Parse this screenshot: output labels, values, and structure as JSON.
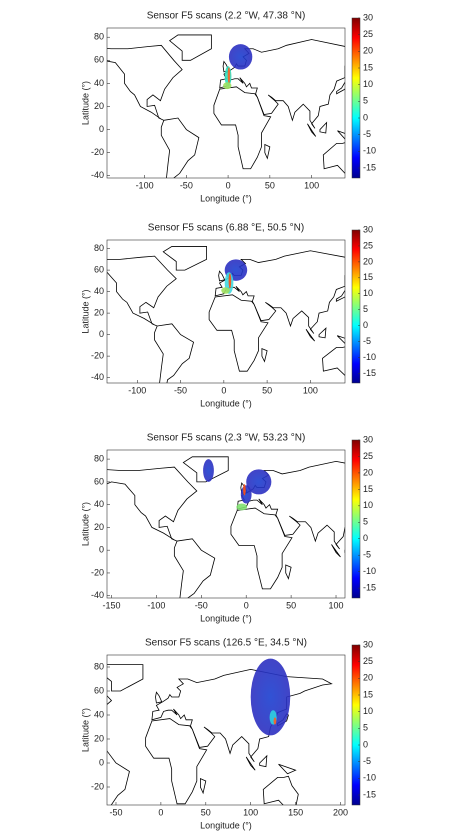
{
  "chart_data": [
    {
      "type": "map",
      "title": "Sensor F5 scans (2.2 °W, 47.38 °N)",
      "xlabel": "Longitude (°)",
      "ylabel": "Latitude (°)",
      "xlim": [
        -145,
        140
      ],
      "ylim": [
        -42,
        88
      ],
      "xticks": [
        -100,
        -50,
        0,
        50,
        100
      ],
      "yticks": [
        -40,
        -20,
        0,
        20,
        40,
        60,
        80
      ],
      "colorbar": {
        "clim": [
          -18,
          30
        ],
        "ticks": [
          -15,
          -10,
          -5,
          0,
          5,
          10,
          15,
          20,
          25,
          30
        ]
      }
    },
    {
      "type": "map",
      "title": "Sensor F5 scans (6.88 °E, 50.5 °N)",
      "xlabel": "Longitude (°)",
      "ylabel": "Latitude (°)",
      "xlim": [
        -135,
        140
      ],
      "ylim": [
        -45,
        88
      ],
      "xticks": [
        -100,
        -50,
        0,
        50,
        100
      ],
      "yticks": [
        -40,
        -20,
        0,
        20,
        40,
        60,
        80
      ],
      "colorbar": {
        "clim": [
          -18,
          30
        ],
        "ticks": [
          -15,
          -10,
          -5,
          0,
          5,
          10,
          15,
          20,
          25,
          30
        ]
      }
    },
    {
      "type": "map",
      "title": "Sensor F5 scans (2.3 °W, 53.23 °N)",
      "xlabel": "Longitude (°)",
      "ylabel": "Latitude (°)",
      "xlim": [
        -155,
        110
      ],
      "ylim": [
        -42,
        88
      ],
      "xticks": [
        -150,
        -100,
        -50,
        0,
        50,
        100
      ],
      "yticks": [
        -40,
        -20,
        0,
        20,
        40,
        60,
        80
      ],
      "colorbar": {
        "clim": [
          -18,
          30
        ],
        "ticks": [
          -15,
          -10,
          -5,
          0,
          5,
          10,
          15,
          20,
          25,
          30
        ]
      }
    },
    {
      "type": "map",
      "title": "Sensor F5 scans (126.5 °E, 34.5 °N)",
      "xlabel": "Longitude (°)",
      "ylabel": "Latitude (°)",
      "xlim": [
        -60,
        205
      ],
      "ylim": [
        -35,
        90
      ],
      "xticks": [
        -50,
        0,
        50,
        100,
        150,
        200
      ],
      "yticks": [
        -20,
        0,
        20,
        40,
        60,
        80
      ],
      "colorbar": {
        "clim": [
          -18,
          30
        ],
        "ticks": [
          -15,
          -10,
          -5,
          0,
          5,
          10,
          15,
          20,
          25,
          30
        ]
      }
    }
  ]
}
